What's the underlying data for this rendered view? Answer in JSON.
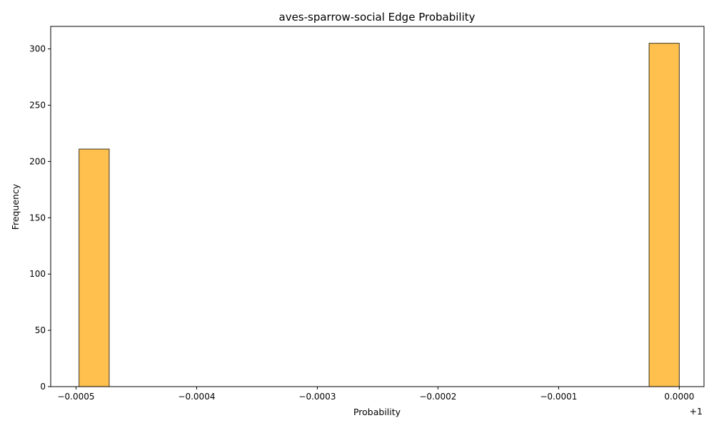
{
  "chart_data": {
    "type": "bar",
    "title": "aves-sparrow-social Edge Probability",
    "xlabel": "Probability",
    "ylabel": "Frequency",
    "x_offset_label": "+1",
    "xlim": [
      -0.000521,
      2.05e-05
    ],
    "ylim": [
      0,
      320
    ],
    "x_ticks": [
      {
        "value": -0.0005,
        "label": "−0.0005"
      },
      {
        "value": -0.0004,
        "label": "−0.0004"
      },
      {
        "value": -0.0003,
        "label": "−0.0003"
      },
      {
        "value": -0.0002,
        "label": "−0.0002"
      },
      {
        "value": -0.0001,
        "label": "−0.0001"
      },
      {
        "value": 0.0,
        "label": "0.0000"
      }
    ],
    "y_ticks": [
      {
        "value": 0,
        "label": "0"
      },
      {
        "value": 50,
        "label": "50"
      },
      {
        "value": 100,
        "label": "100"
      },
      {
        "value": 150,
        "label": "150"
      },
      {
        "value": 200,
        "label": "200"
      },
      {
        "value": 250,
        "label": "250"
      },
      {
        "value": 300,
        "label": "300"
      }
    ],
    "bins": [
      {
        "x0": -0.0004975,
        "x1": -0.0004725,
        "count": 211
      },
      {
        "x0": -2.5e-05,
        "x1": 0.0,
        "count": 305
      }
    ],
    "colors": {
      "bar_fill": "#ffc04d",
      "bar_edge": "#3a3220"
    },
    "grid": false,
    "legend": "none"
  }
}
